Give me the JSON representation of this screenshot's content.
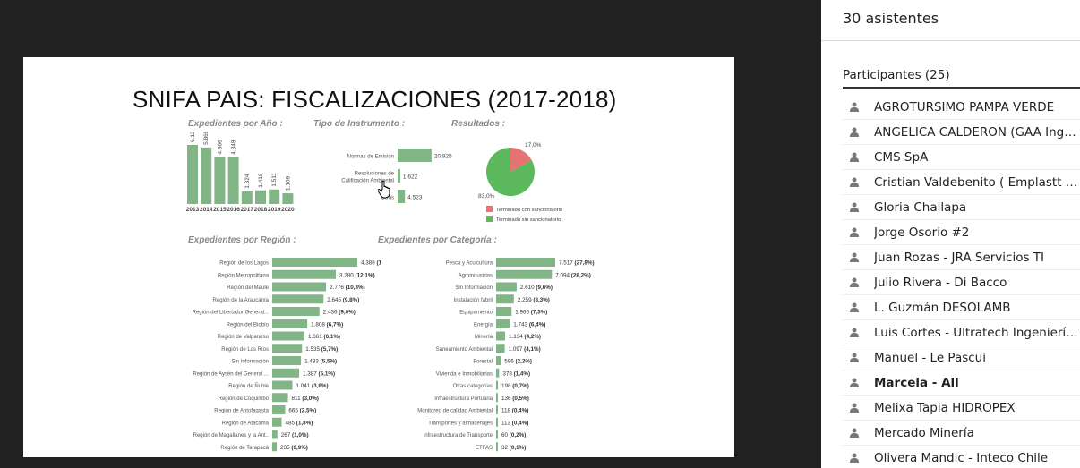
{
  "sidebar": {
    "attendees_title": "30 asistentes",
    "participants_title": "Participantes (25)",
    "participants": [
      {
        "name": "AGROTURSIMO PAMPA VERDE",
        "bold": false
      },
      {
        "name": "ANGELICA CALDERON (GAA Ingeniería)",
        "bold": false
      },
      {
        "name": "CMS SpA",
        "bold": false
      },
      {
        "name": "Cristian Valdebenito ( Emplastt Ltda.)",
        "bold": false
      },
      {
        "name": "Gloria Challapa",
        "bold": false
      },
      {
        "name": "Jorge Osorio #2",
        "bold": false
      },
      {
        "name": "Juan Rozas - JRA Servicios TI",
        "bold": false
      },
      {
        "name": "Julio Rivera - Di Bacco",
        "bold": false
      },
      {
        "name": "L. Guzmán DESOLAMB",
        "bold": false
      },
      {
        "name": "Luis Cortes - Ultratech Ingeniería Ltda.",
        "bold": false
      },
      {
        "name": "Manuel - Le Pascui",
        "bold": false
      },
      {
        "name": "Marcela - All",
        "bold": true
      },
      {
        "name": "Melixa Tapia HIDROPEX",
        "bold": false
      },
      {
        "name": "Mercado Minería",
        "bold": false
      },
      {
        "name": "Olivera Mandic - Inteco Chile",
        "bold": false
      }
    ]
  },
  "slide": {
    "title": "SNIFA PAIS:  FISCALIZACIONES (2017-2018)",
    "colors": {
      "bar": "#82b585",
      "pie_red": "#e57373",
      "pie_green": "#5cb85c"
    }
  },
  "chart_data": [
    {
      "type": "bar",
      "title": "Expedientes por Año :",
      "categories": [
        "2013",
        "2014",
        "2015",
        "2016",
        "2017",
        "2018",
        "2019",
        "2020"
      ],
      "values": [
        6128,
        5865,
        4866,
        4849,
        1324,
        1418,
        1511,
        1109
      ],
      "labels": [
        "6.128",
        "5.865",
        "4.866",
        "4.849",
        "1.324",
        "1.418",
        "1.511",
        "1.109"
      ],
      "ylim": [
        0,
        6500
      ]
    },
    {
      "type": "bar",
      "orientation": "horizontal",
      "title": "Tipo de Instrumento :",
      "categories": [
        "Normas de Emisión",
        "Resoluciones de Calificación Ambiental",
        "Otros"
      ],
      "values": [
        20925,
        1622,
        4523
      ],
      "labels": [
        "20.925",
        "1.622",
        "4.523"
      ],
      "xlim": [
        0,
        21000
      ]
    },
    {
      "type": "pie",
      "title": "Resultados :",
      "categories": [
        "Terminado con sancionatorio",
        "Terminado sin sancionatorio"
      ],
      "values": [
        17.0,
        83.0
      ],
      "labels": [
        "17,0%",
        "83,0%"
      ],
      "colors": [
        "#e57373",
        "#5cb85c"
      ]
    },
    {
      "type": "bar",
      "orientation": "horizontal",
      "title": "Expedientes por Región :",
      "categories": [
        "Región de los Lagos",
        "Región Metropolitana",
        "Región del Maule",
        "Región de la Araucanía",
        "Región del Libertador General...",
        "Región del Biobío",
        "Región de Valparaíso",
        "Región de Los Ríos",
        "Sin Información",
        "Región de Aysén del General ...",
        "Región de Ñuble",
        "Región de Coquimbo",
        "Región de Antofagasta",
        "Región de Atacama",
        "Región de Magallanes y la Ant..",
        "Región de Tarapacá"
      ],
      "values": [
        4388,
        3280,
        2776,
        2645,
        2436,
        1808,
        1661,
        1535,
        1483,
        1387,
        1041,
        811,
        665,
        485,
        267,
        235
      ],
      "labels": [
        "4.388",
        "3.280",
        "2.776",
        "2.645",
        "2.436",
        "1.808",
        "1.661",
        "1.535",
        "1.483",
        "1.387",
        "1.041",
        "811",
        "665",
        "485",
        "267",
        "235"
      ],
      "percents": [
        "(16,2%)",
        "(12,1%)",
        "(10,3%)",
        "(9,8%)",
        "(9,0%)",
        "(6,7%)",
        "(6,1%)",
        "(5,7%)",
        "(5,5%)",
        "(5,1%)",
        "(3,8%)",
        "(3,0%)",
        "(2,5%)",
        "(1,8%)",
        "(1,0%)",
        "(0,9%)"
      ],
      "xlim": [
        0,
        4388
      ]
    },
    {
      "type": "bar",
      "orientation": "horizontal",
      "title": "Expedientes por Categoría :",
      "categories": [
        "Pesca y Acuicultura",
        "Agroindustrias",
        "Sin Información",
        "Instalación fabril",
        "Equipamiento",
        "Energía",
        "Minería",
        "Saneamiento Ambiental",
        "Forestal",
        "Vivienda e Inmobiliarias",
        "Otras categorías",
        "Infraestructura Portuaria",
        "Monitoreo de calidad Ambiental",
        "Transportes y almacenajes",
        "Infraestructura de Transporte",
        "ETFAS"
      ],
      "values": [
        7517,
        7094,
        2610,
        2259,
        1966,
        1743,
        1134,
        1097,
        596,
        378,
        198,
        136,
        118,
        113,
        60,
        32
      ],
      "labels": [
        "7.517",
        "7.094",
        "2.610",
        "2.259",
        "1.966",
        "1.743",
        "1.134",
        "1.097",
        "596",
        "378",
        "198",
        "136",
        "118",
        "113",
        "60",
        "32"
      ],
      "percents": [
        "(27,8%)",
        "(26,2%)",
        "(9,6%)",
        "(8,3%)",
        "(7,3%)",
        "(6,4%)",
        "(4,2%)",
        "(4,1%)",
        "(2,2%)",
        "(1,4%)",
        "(0,7%)",
        "(0,5%)",
        "(0,4%)",
        "(0,4%)",
        "(0,2%)",
        "(0,1%)"
      ],
      "xlim": [
        0,
        7517
      ]
    }
  ]
}
